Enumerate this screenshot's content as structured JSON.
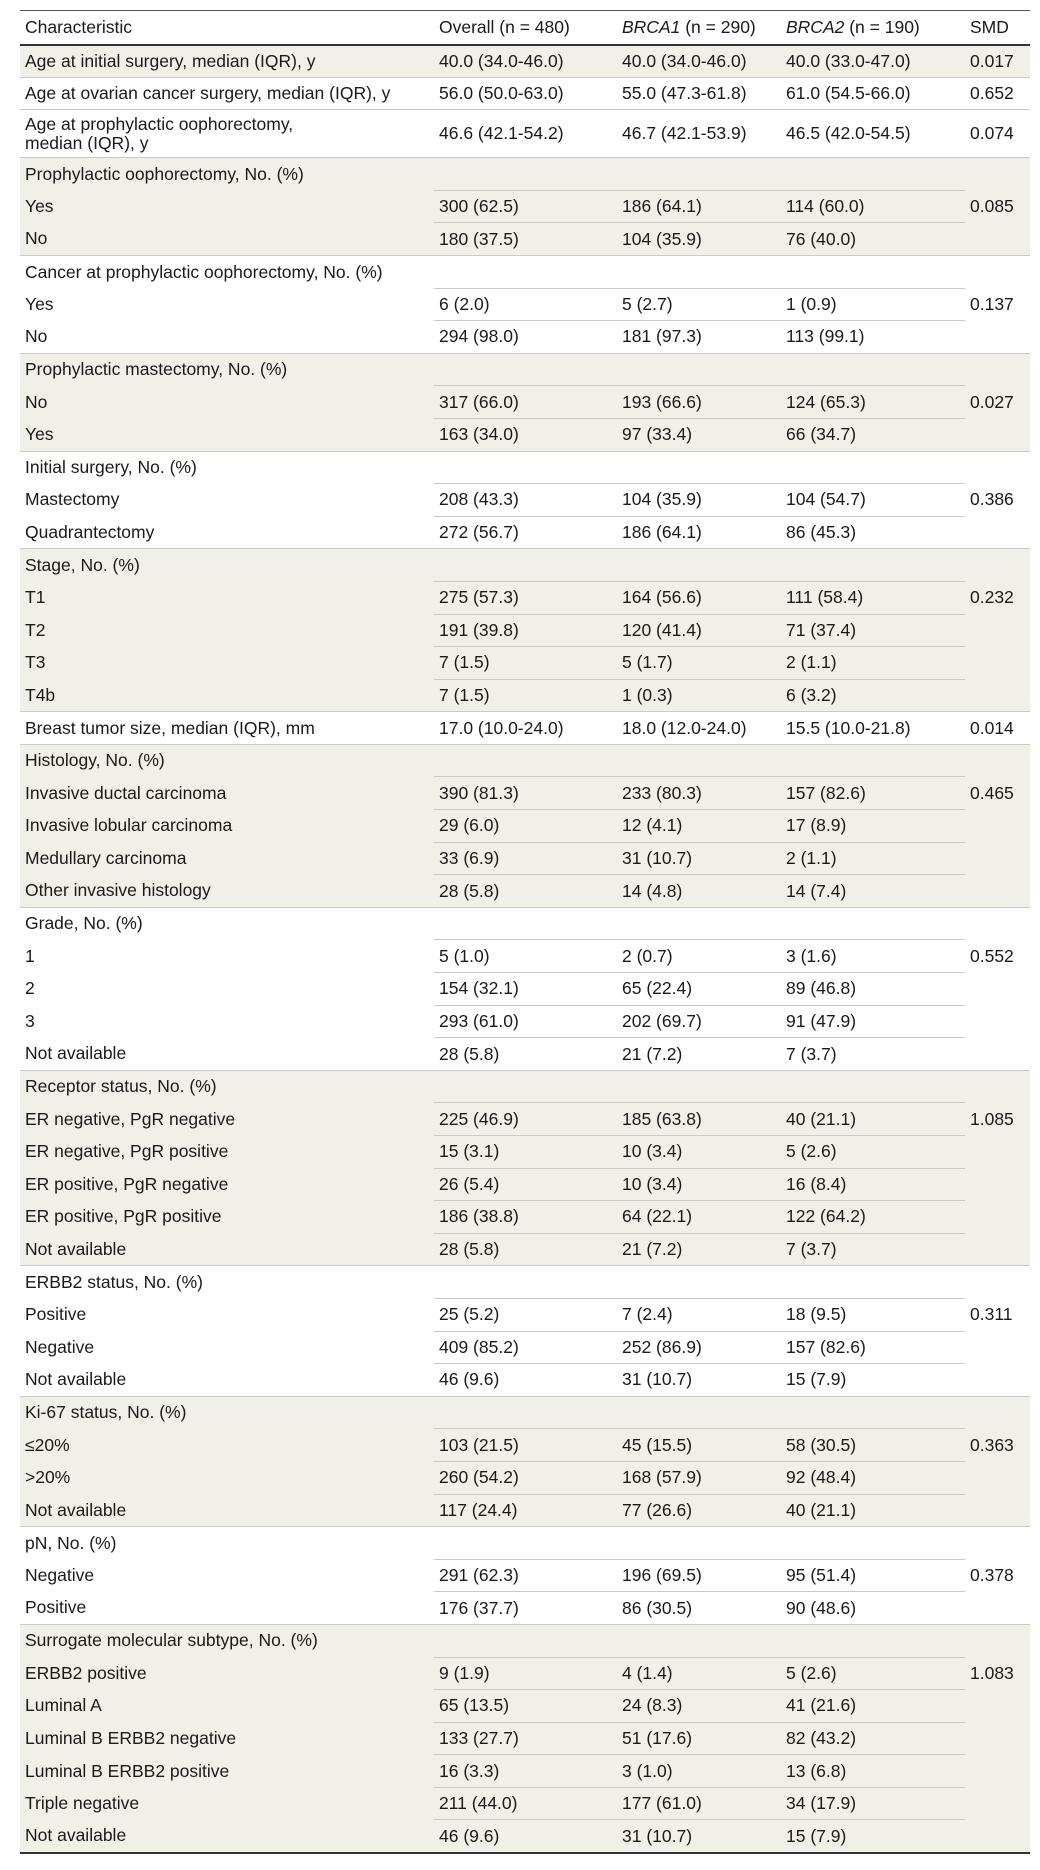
{
  "columns": {
    "characteristic": "Characteristic",
    "overall": "Overall (n = 480)",
    "brca1_gene": "BRCA1",
    "brca1_n": " (n = 290)",
    "brca2_gene": "BRCA2",
    "brca2_n": " (n = 190)",
    "smd": "SMD"
  },
  "rows": [
    {
      "label": "Age at initial surgery, median (IQR), y",
      "overall": "40.0 (34.0-46.0)",
      "brca1": "40.0 (34.0-46.0)",
      "brca2": "40.0 (33.0-47.0)",
      "smd": "0.017"
    },
    {
      "label": "Age at ovarian cancer surgery, median (IQR), y",
      "overall": "56.0 (50.0-63.0)",
      "brca1": "55.0 (47.3-61.8)",
      "brca2": "61.0 (54.5-66.0)",
      "smd": "0.652"
    },
    {
      "label": "Age at prophylactic oophorectomy,",
      "label2": "median (IQR), y",
      "overall": "46.6 (42.1-54.2)",
      "brca1": "46.7 (42.1-53.9)",
      "brca2": "46.5 (42.0-54.5)",
      "smd": "0.074"
    },
    {
      "label": "Prophylactic oophorectomy, No. (%)"
    },
    {
      "label": "Yes",
      "overall": "300 (62.5)",
      "brca1": "186 (64.1)",
      "brca2": "114 (60.0)",
      "smd": "0.085"
    },
    {
      "label": "No",
      "overall": "180 (37.5)",
      "brca1": "104 (35.9)",
      "brca2": "76 (40.0)",
      "smd": ""
    },
    {
      "label": "Cancer at prophylactic oophorectomy, No. (%)"
    },
    {
      "label": "Yes",
      "overall": "6 (2.0)",
      "brca1": "5 (2.7)",
      "brca2": "1 (0.9)",
      "smd": "0.137"
    },
    {
      "label": "No",
      "overall": "294 (98.0)",
      "brca1": "181 (97.3)",
      "brca2": "113 (99.1)",
      "smd": ""
    },
    {
      "label": "Prophylactic mastectomy, No. (%)"
    },
    {
      "label": "No",
      "overall": "317 (66.0)",
      "brca1": "193 (66.6)",
      "brca2": "124 (65.3)",
      "smd": "0.027"
    },
    {
      "label": "Yes",
      "overall": "163 (34.0)",
      "brca1": "97 (33.4)",
      "brca2": "66 (34.7)",
      "smd": ""
    },
    {
      "label": "Initial surgery, No. (%)"
    },
    {
      "label": "Mastectomy",
      "overall": "208 (43.3)",
      "brca1": "104 (35.9)",
      "brca2": "104 (54.7)",
      "smd": "0.386"
    },
    {
      "label": "Quadrantectomy",
      "overall": "272 (56.7)",
      "brca1": "186 (64.1)",
      "brca2": "86 (45.3)",
      "smd": ""
    },
    {
      "label": "Stage, No. (%)"
    },
    {
      "label": "T1",
      "overall": "275 (57.3)",
      "brca1": "164 (56.6)",
      "brca2": "111 (58.4)",
      "smd": "0.232"
    },
    {
      "label": "T2",
      "overall": "191 (39.8)",
      "brca1": "120 (41.4)",
      "brca2": "71 (37.4)",
      "smd": ""
    },
    {
      "label": "T3",
      "overall": "7 (1.5)",
      "brca1": "5 (1.7)",
      "brca2": "2 (1.1)",
      "smd": ""
    },
    {
      "label": "T4b",
      "overall": "7 (1.5)",
      "brca1": "1 (0.3)",
      "brca2": "6 (3.2)",
      "smd": ""
    },
    {
      "label": "Breast tumor size, median (IQR), mm",
      "overall": "17.0 (10.0-24.0)",
      "brca1": "18.0 (12.0-24.0)",
      "brca2": "15.5 (10.0-21.8)",
      "smd": "0.014"
    },
    {
      "label": "Histology, No. (%)"
    },
    {
      "label": "Invasive ductal carcinoma",
      "overall": "390 (81.3)",
      "brca1": "233 (80.3)",
      "brca2": "157 (82.6)",
      "smd": "0.465"
    },
    {
      "label": "Invasive lobular carcinoma",
      "overall": "29 (6.0)",
      "brca1": "12 (4.1)",
      "brca2": "17 (8.9)",
      "smd": ""
    },
    {
      "label": "Medullary carcinoma",
      "overall": "33 (6.9)",
      "brca1": "31 (10.7)",
      "brca2": "2 (1.1)",
      "smd": ""
    },
    {
      "label": "Other invasive histology",
      "overall": "28 (5.8)",
      "brca1": "14 (4.8)",
      "brca2": "14 (7.4)",
      "smd": ""
    },
    {
      "label": "Grade, No. (%)"
    },
    {
      "label": "1",
      "overall": "5 (1.0)",
      "brca1": "2 (0.7)",
      "brca2": "3 (1.6)",
      "smd": "0.552"
    },
    {
      "label": "2",
      "overall": "154 (32.1)",
      "brca1": "65 (22.4)",
      "brca2": "89 (46.8)",
      "smd": ""
    },
    {
      "label": "3",
      "overall": "293 (61.0)",
      "brca1": "202 (69.7)",
      "brca2": "91 (47.9)",
      "smd": ""
    },
    {
      "label": "Not available",
      "overall": "28 (5.8)",
      "brca1": "21 (7.2)",
      "brca2": "7 (3.7)",
      "smd": ""
    },
    {
      "label": "Receptor status, No. (%)"
    },
    {
      "label": "ER negative, PgR negative",
      "overall": "225 (46.9)",
      "brca1": "185 (63.8)",
      "brca2": "40 (21.1)",
      "smd": "1.085"
    },
    {
      "label": "ER negative, PgR positive",
      "overall": "15 (3.1)",
      "brca1": "10 (3.4)",
      "brca2": "5 (2.6)",
      "smd": ""
    },
    {
      "label": "ER positive, PgR negative",
      "overall": "26 (5.4)",
      "brca1": "10 (3.4)",
      "brca2": "16 (8.4)",
      "smd": ""
    },
    {
      "label": "ER positive, PgR positive",
      "overall": "186 (38.8)",
      "brca1": "64 (22.1)",
      "brca2": "122 (64.2)",
      "smd": ""
    },
    {
      "label": "Not available",
      "overall": "28 (5.8)",
      "brca1": "21 (7.2)",
      "brca2": "7 (3.7)",
      "smd": ""
    },
    {
      "label": "ERBB2 status, No. (%)"
    },
    {
      "label": "Positive",
      "overall": "25 (5.2)",
      "brca1": "7 (2.4)",
      "brca2": "18 (9.5)",
      "smd": "0.311"
    },
    {
      "label": "Negative",
      "overall": "409 (85.2)",
      "brca1": "252 (86.9)",
      "brca2": "157 (82.6)",
      "smd": ""
    },
    {
      "label": "Not available",
      "overall": "46 (9.6)",
      "brca1": "31 (10.7)",
      "brca2": "15 (7.9)",
      "smd": ""
    },
    {
      "label": "Ki-67 status, No. (%)"
    },
    {
      "label": "≤20%",
      "overall": "103 (21.5)",
      "brca1": "45 (15.5)",
      "brca2": "58 (30.5)",
      "smd": "0.363"
    },
    {
      "label": ">20%",
      "overall": "260 (54.2)",
      "brca1": "168 (57.9)",
      "brca2": "92 (48.4)",
      "smd": ""
    },
    {
      "label": "Not available",
      "overall": "117 (24.4)",
      "brca1": "77 (26.6)",
      "brca2": "40 (21.1)",
      "smd": ""
    },
    {
      "label": "pN, No. (%)"
    },
    {
      "label": "Negative",
      "overall": "291 (62.3)",
      "brca1": "196 (69.5)",
      "brca2": "95 (51.4)",
      "smd": "0.378"
    },
    {
      "label": "Positive",
      "overall": "176 (37.7)",
      "brca1": "86 (30.5)",
      "brca2": "90 (48.6)",
      "smd": ""
    },
    {
      "label": "Surrogate molecular subtype, No. (%)"
    },
    {
      "label": "ERBB2 positive",
      "overall": "9 (1.9)",
      "brca1": "4 (1.4)",
      "brca2": "5 (2.6)",
      "smd": "1.083"
    },
    {
      "label": "Luminal A",
      "overall": "65 (13.5)",
      "brca1": "24 (8.3)",
      "brca2": "41 (21.6)",
      "smd": ""
    },
    {
      "label": "Luminal B ERBB2 negative",
      "overall": "133 (27.7)",
      "brca1": "51 (17.6)",
      "brca2": "82 (43.2)",
      "smd": ""
    },
    {
      "label": "Luminal B ERBB2 positive",
      "overall": "16 (3.3)",
      "brca1": "3 (1.0)",
      "brca2": "13 (6.8)",
      "smd": ""
    },
    {
      "label": "Triple negative",
      "overall": "211 (44.0)",
      "brca1": "177 (61.0)",
      "brca2": "34 (17.9)",
      "smd": ""
    },
    {
      "label": "Not available",
      "overall": "46 (9.6)",
      "brca1": "31 (10.7)",
      "brca2": "15 (7.9)",
      "smd": ""
    }
  ]
}
